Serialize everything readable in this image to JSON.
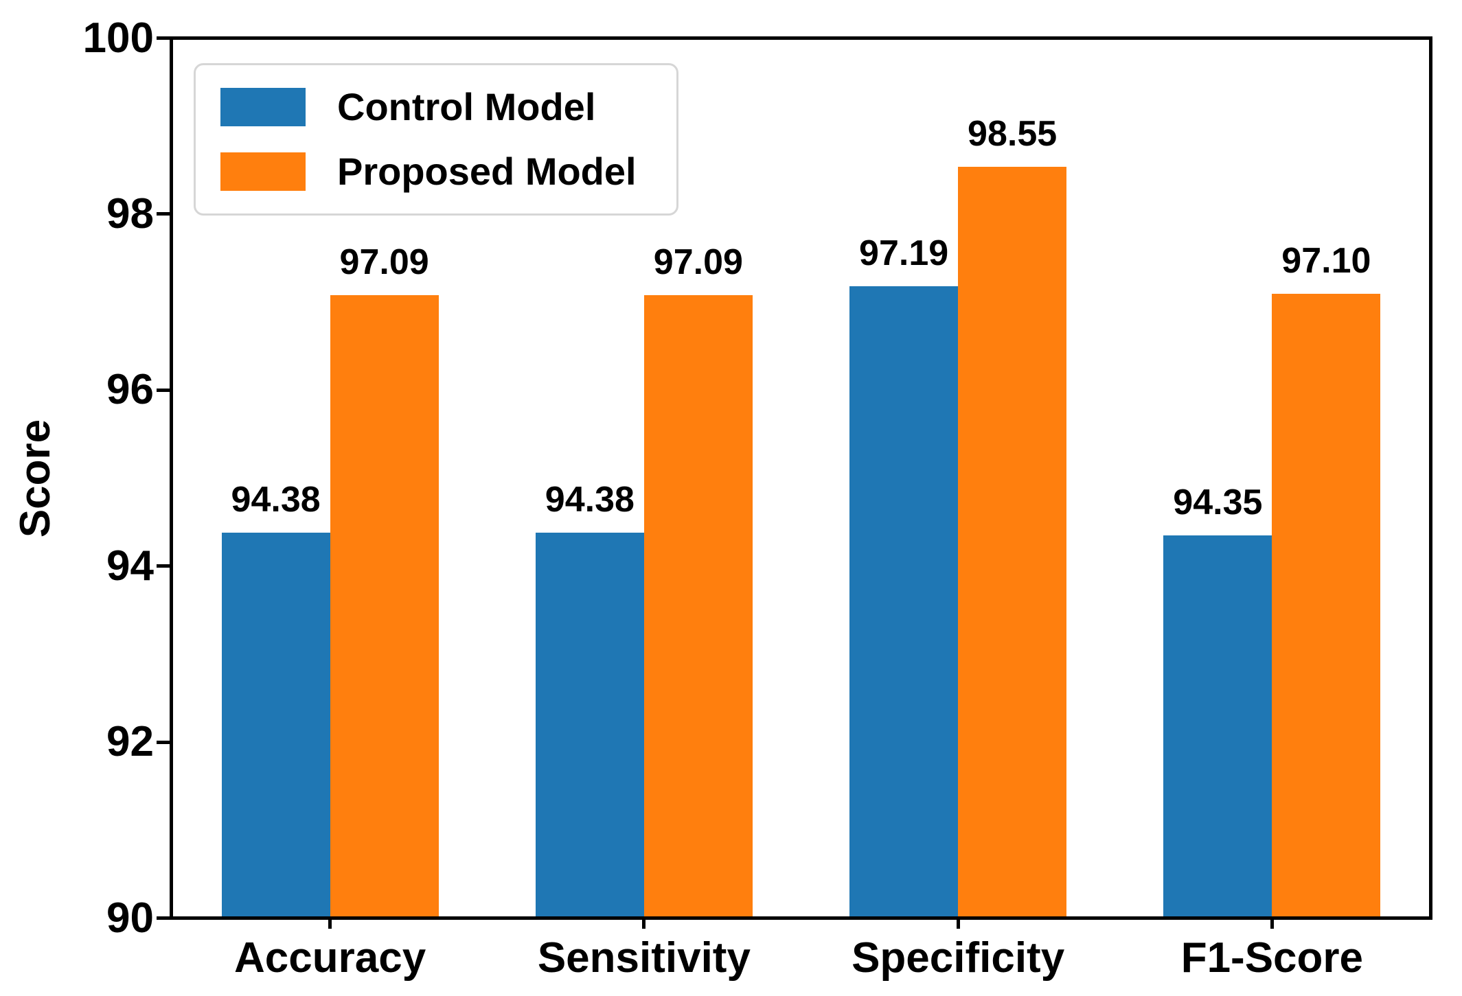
{
  "figure": {
    "background_color": "#ffffff",
    "text_color": "#000000",
    "spine_color": "#000000"
  },
  "chart_data": {
    "type": "bar",
    "categories": [
      "Accuracy",
      "Sensitivity",
      "Specificity",
      "F1-Score"
    ],
    "series": [
      {
        "name": "Control Model",
        "color": "#1f77b4",
        "values": [
          94.38,
          94.38,
          97.19,
          94.35
        ],
        "labels": [
          "94.38",
          "94.38",
          "97.19",
          "94.35"
        ]
      },
      {
        "name": "Proposed Model",
        "color": "#ff7f0e",
        "values": [
          97.09,
          97.09,
          98.55,
          97.1
        ],
        "labels": [
          "97.09",
          "97.09",
          "98.55",
          "97.10"
        ]
      }
    ],
    "title": "",
    "xlabel": "",
    "ylabel": "Score",
    "ylim": [
      90,
      100
    ],
    "yticks": [
      90,
      92,
      94,
      96,
      98,
      100
    ],
    "ytick_labels": [
      "90",
      "92",
      "94",
      "96",
      "98",
      "100"
    ],
    "grid": false,
    "legend_position": "upper left",
    "bar_width_fraction": 0.345,
    "value_labels_shown": true
  }
}
